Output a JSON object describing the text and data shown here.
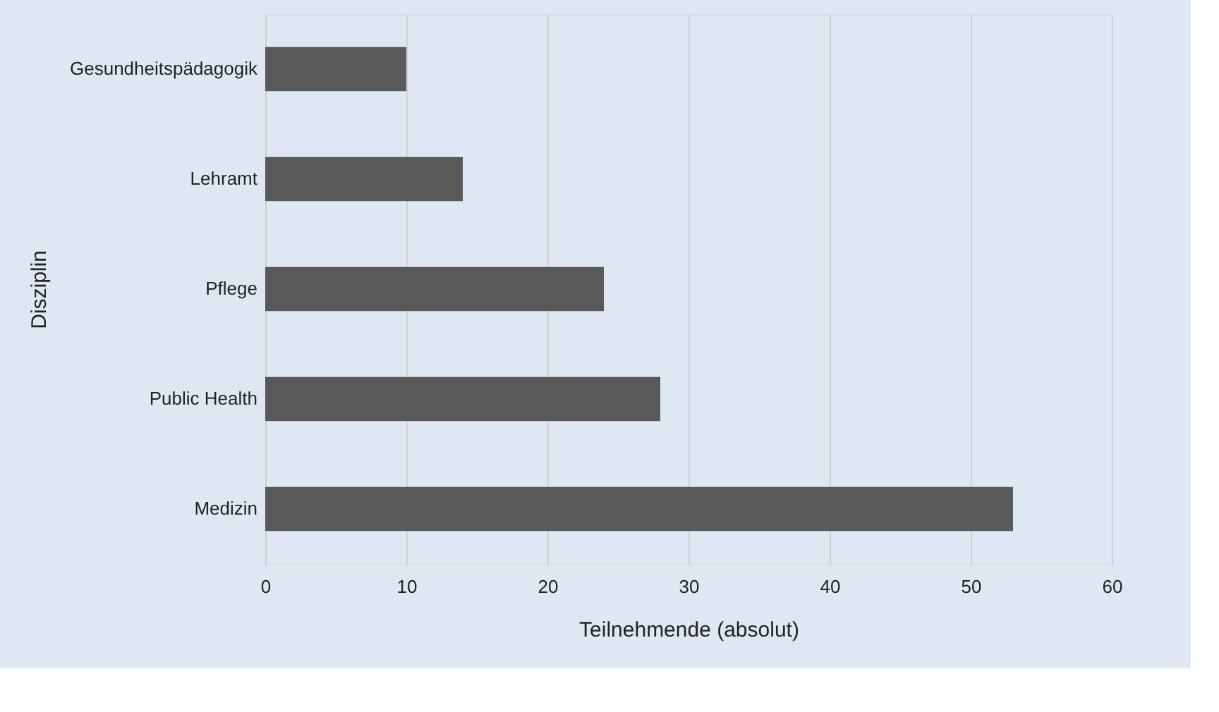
{
  "chart_data": {
    "type": "bar",
    "orientation": "horizontal",
    "categories": [
      "Gesundheitspädagogik",
      "Lehramt",
      "Pflege",
      "Public Health",
      "Medizin"
    ],
    "values": [
      10,
      14,
      24,
      28,
      53
    ],
    "color": "#595959",
    "xlabel": "Teilnehmende (absolut)",
    "ylabel": "Disziplin",
    "xlim": [
      0,
      60
    ],
    "xticks": [
      0,
      10,
      20,
      30,
      40,
      50,
      60
    ],
    "grid": "x"
  }
}
